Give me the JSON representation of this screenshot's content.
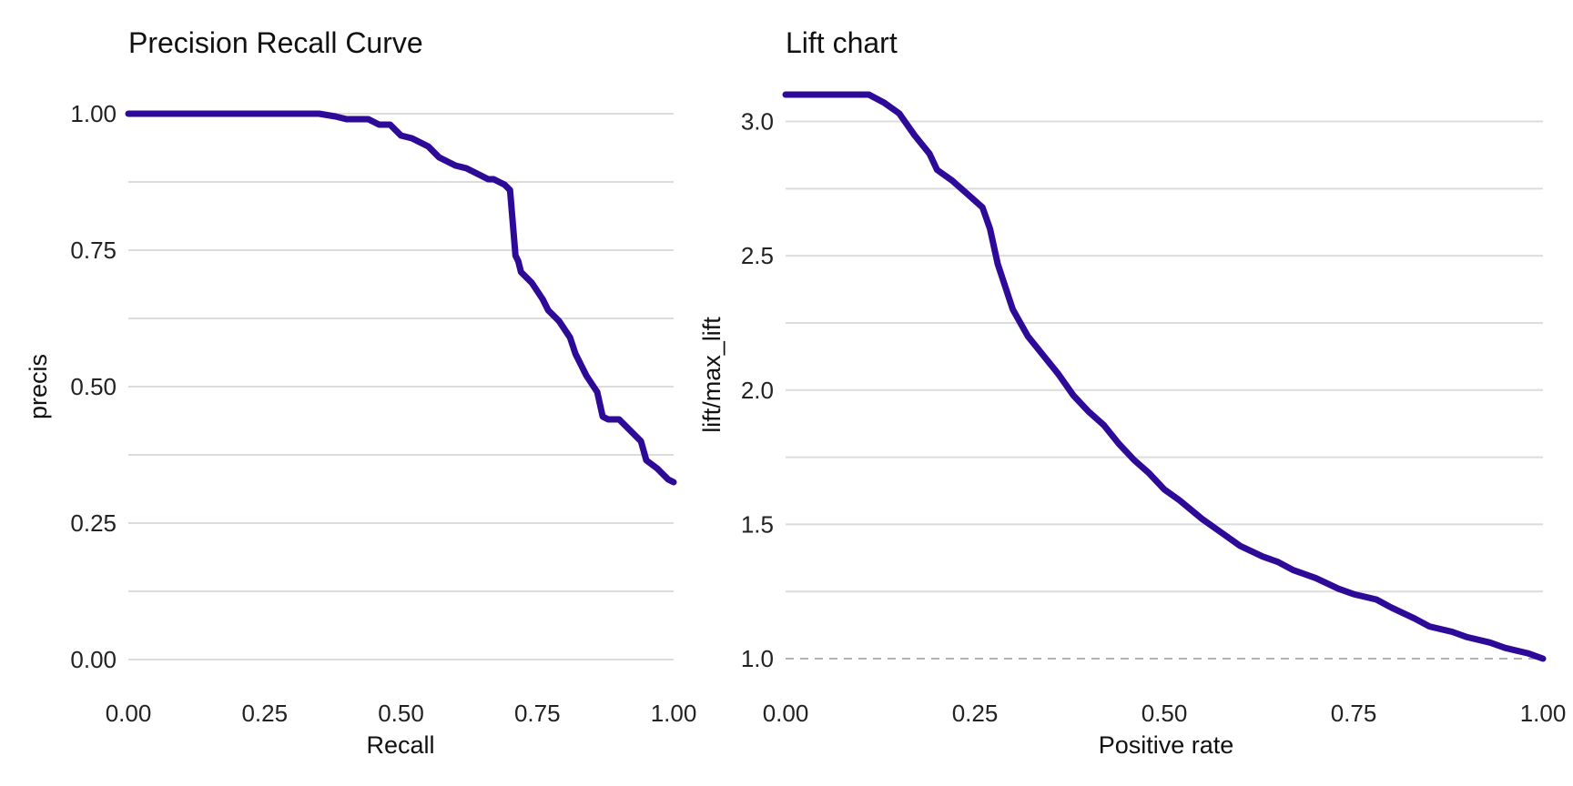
{
  "chart_data": [
    {
      "type": "line",
      "title": "Precision Recall Curve",
      "xlabel": "Recall",
      "ylabel": "precis",
      "xlim": [
        0,
        1
      ],
      "ylim": [
        0,
        1
      ],
      "x_ticks": [
        "0.00",
        "0.25",
        "0.50",
        "0.75",
        "1.00"
      ],
      "y_ticks": [
        "0.00",
        "0.25",
        "0.50",
        "0.75",
        "1.00"
      ],
      "x_tick_values": [
        0,
        0.25,
        0.5,
        0.75,
        1
      ],
      "y_tick_values": [
        0,
        0.25,
        0.5,
        0.75,
        1
      ],
      "grid_y": [
        0,
        0.125,
        0.25,
        0.375,
        0.5,
        0.625,
        0.75,
        0.875,
        1
      ],
      "color": "#2e0a99",
      "series": [
        {
          "x": [
            0.0,
            0.1,
            0.2,
            0.3,
            0.35,
            0.38,
            0.4,
            0.44,
            0.46,
            0.48,
            0.5,
            0.52,
            0.55,
            0.57,
            0.6,
            0.62,
            0.64,
            0.66,
            0.67,
            0.69,
            0.7,
            0.705,
            0.71,
            0.715,
            0.72,
            0.74,
            0.76,
            0.77,
            0.79,
            0.81,
            0.82,
            0.84,
            0.86,
            0.87,
            0.88,
            0.9,
            0.92,
            0.94,
            0.95,
            0.97,
            0.99,
            1.0
          ],
          "y": [
            1.0,
            1.0,
            1.0,
            1.0,
            1.0,
            0.995,
            0.99,
            0.99,
            0.98,
            0.98,
            0.96,
            0.955,
            0.94,
            0.92,
            0.905,
            0.9,
            0.89,
            0.88,
            0.88,
            0.87,
            0.86,
            0.8,
            0.74,
            0.73,
            0.71,
            0.69,
            0.66,
            0.64,
            0.62,
            0.59,
            0.56,
            0.52,
            0.49,
            0.445,
            0.44,
            0.44,
            0.42,
            0.4,
            0.365,
            0.35,
            0.33,
            0.325
          ]
        }
      ]
    },
    {
      "type": "line",
      "title": "Lift chart",
      "xlabel": "Positive rate",
      "ylabel": "lift/max_lift",
      "xlim": [
        0,
        1
      ],
      "ylim": [
        1,
        3.1
      ],
      "x_ticks": [
        "0.00",
        "0.25",
        "0.50",
        "0.75",
        "1.00"
      ],
      "y_ticks": [
        "1.0",
        "1.5",
        "2.0",
        "2.5",
        "3.0"
      ],
      "x_tick_values": [
        0,
        0.25,
        0.5,
        0.75,
        1
      ],
      "y_tick_values": [
        1.0,
        1.5,
        2.0,
        2.5,
        3.0
      ],
      "grid_y": [
        1.0,
        1.25,
        1.5,
        1.75,
        2.0,
        2.25,
        2.5,
        2.75,
        3.0
      ],
      "reference_y": 1.0,
      "color": "#2e0a99",
      "series": [
        {
          "x": [
            0.0,
            0.05,
            0.11,
            0.13,
            0.15,
            0.17,
            0.19,
            0.2,
            0.22,
            0.24,
            0.26,
            0.27,
            0.28,
            0.3,
            0.32,
            0.34,
            0.36,
            0.38,
            0.4,
            0.42,
            0.44,
            0.46,
            0.48,
            0.5,
            0.52,
            0.55,
            0.58,
            0.6,
            0.63,
            0.65,
            0.67,
            0.7,
            0.73,
            0.75,
            0.78,
            0.8,
            0.83,
            0.85,
            0.88,
            0.9,
            0.93,
            0.95,
            0.98,
            1.0
          ],
          "y": [
            3.1,
            3.1,
            3.1,
            3.07,
            3.03,
            2.95,
            2.88,
            2.82,
            2.78,
            2.73,
            2.68,
            2.6,
            2.47,
            2.3,
            2.2,
            2.13,
            2.06,
            1.98,
            1.92,
            1.87,
            1.8,
            1.74,
            1.69,
            1.63,
            1.59,
            1.52,
            1.46,
            1.42,
            1.38,
            1.36,
            1.33,
            1.3,
            1.26,
            1.24,
            1.22,
            1.19,
            1.15,
            1.12,
            1.1,
            1.08,
            1.06,
            1.04,
            1.02,
            1.0
          ]
        }
      ]
    }
  ]
}
